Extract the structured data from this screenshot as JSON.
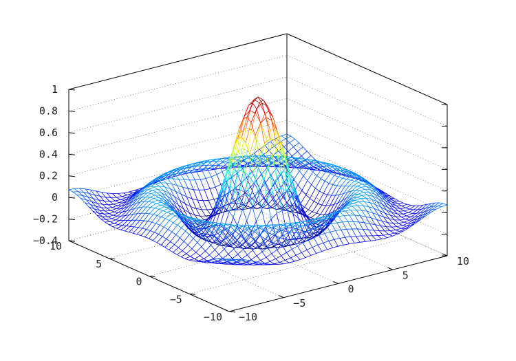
{
  "chart_data": {
    "type": "surface-mesh",
    "function": "sinc(r), r = sqrt(x^2 + y^2)",
    "x": {
      "min": -10,
      "max": 10,
      "ticks": [
        -10,
        -5,
        0,
        5,
        10
      ]
    },
    "y": {
      "min": -10,
      "max": 10,
      "ticks": [
        -10,
        -5,
        0,
        5,
        10
      ]
    },
    "z": {
      "min": -0.4,
      "max": 1,
      "ticks": [
        -0.4,
        -0.2,
        0,
        0.2,
        0.4,
        0.6,
        0.8,
        1
      ]
    },
    "tick_labels": {
      "z": [
        "−0.4",
        "−0.2",
        "0",
        "0.2",
        "0.4",
        "0.6",
        "0.8",
        "1"
      ],
      "x": [
        "−10",
        "−5",
        "0",
        "5",
        "10"
      ],
      "y": [
        "−10",
        "−5",
        "0",
        "5",
        "10"
      ]
    },
    "peak": {
      "x": 0,
      "y": 0,
      "z": 1
    },
    "grid": true,
    "colormap": "jet"
  }
}
